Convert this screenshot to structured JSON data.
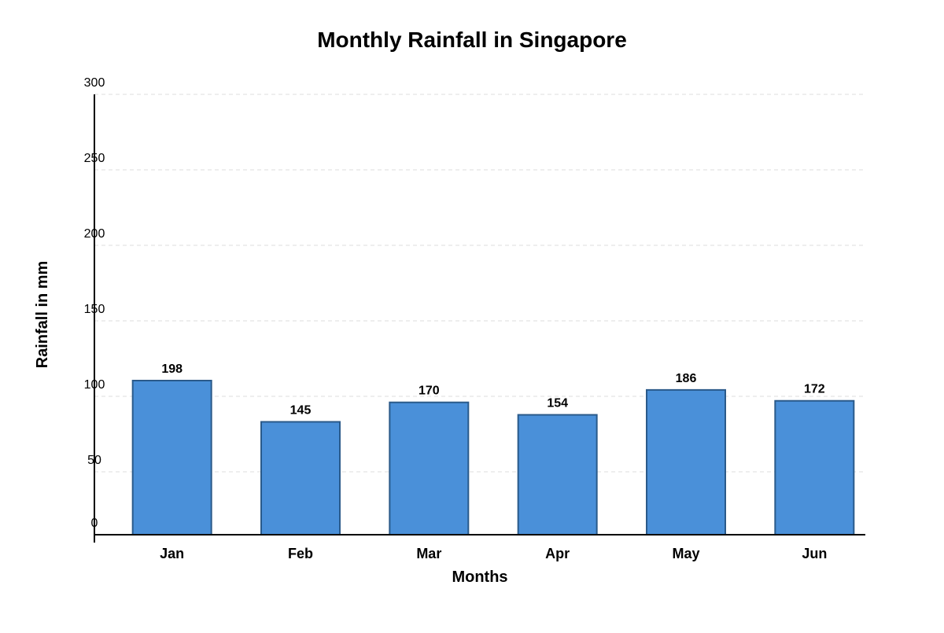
{
  "chart_data": {
    "type": "bar",
    "title": "Monthly Rainfall in Singapore",
    "xlabel": "Months",
    "ylabel": "Rainfall in mm",
    "categories": [
      "Jan",
      "Feb",
      "Mar",
      "Apr",
      "May",
      "Jun"
    ],
    "values": [
      198,
      145,
      170,
      154,
      186,
      172
    ],
    "data_labels": [
      "198",
      "145",
      "170",
      "154",
      "186",
      "172"
    ],
    "y_tick_values": [
      0,
      50,
      100,
      150,
      200,
      250,
      300
    ],
    "y_tick_labels": [
      "0",
      "50",
      "100",
      "150",
      "200",
      "250",
      "300"
    ],
    "ylim": [
      0,
      300
    ],
    "grid": true,
    "legend": "none",
    "colors": {
      "bar_fill": "#4a90d9",
      "bar_stroke": "#2a5a8a",
      "grid": "#dddddd",
      "axis": "#000000"
    }
  }
}
